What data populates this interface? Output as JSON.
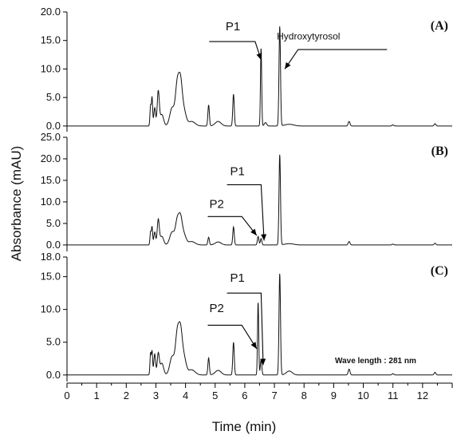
{
  "chart_data": {
    "type": "line",
    "xlabel": "Time (min)",
    "ylabel": "Absorbance (mAU)",
    "x_ticks": [
      "0",
      "1",
      "2",
      "3",
      "4",
      "5",
      "6",
      "7",
      "8",
      "9",
      "10",
      "11",
      "12"
    ],
    "xlim": [
      0,
      13
    ],
    "grid": false,
    "note": "Wave length : 281 nm",
    "panels": [
      {
        "label": "(A)",
        "ylim": [
          -1,
          20
        ],
        "y_ticks": [
          "0.0",
          "5.0",
          "10.0",
          "15.0",
          "20.0"
        ],
        "y_tick_values": [
          0,
          5,
          10,
          15,
          20
        ],
        "peaks": [
          {
            "x": 2.82,
            "y": 3.5,
            "w": 0.02
          },
          {
            "x": 2.87,
            "y": 5.0,
            "w": 0.02
          },
          {
            "x": 2.96,
            "y": 3.2,
            "w": 0.03
          },
          {
            "x": 3.08,
            "y": 6.0,
            "w": 0.035
          },
          {
            "x": 3.2,
            "y": 2.0,
            "w": 0.06
          },
          {
            "x": 3.55,
            "y": 3.2,
            "w": 0.08
          },
          {
            "x": 3.72,
            "y": 6.8,
            "w": 0.06
          },
          {
            "x": 3.83,
            "y": 7.2,
            "w": 0.06
          },
          {
            "x": 3.95,
            "y": 2.5,
            "w": 0.07
          },
          {
            "x": 4.2,
            "y": 0.8,
            "w": 0.12
          },
          {
            "x": 4.78,
            "y": 3.7,
            "w": 0.025
          },
          {
            "x": 5.1,
            "y": 0.8,
            "w": 0.1
          },
          {
            "x": 5.62,
            "y": 5.6,
            "w": 0.025
          },
          {
            "x": 6.55,
            "y": 13.8,
            "w": 0.02
          },
          {
            "x": 6.7,
            "y": 0.6,
            "w": 0.04
          },
          {
            "x": 7.18,
            "y": 17.5,
            "w": 0.025
          },
          {
            "x": 7.5,
            "y": 0.3,
            "w": 0.15
          },
          {
            "x": 9.52,
            "y": 0.8,
            "w": 0.03
          },
          {
            "x": 11.0,
            "y": 0.2,
            "w": 0.03
          },
          {
            "x": 12.42,
            "y": 0.4,
            "w": 0.03
          }
        ],
        "annotations": [
          {
            "text": "P1",
            "x": 5.6,
            "y": 16.8
          },
          {
            "text": "Hydroxytyrosol",
            "x": 8.15,
            "y": 15.2
          }
        ]
      },
      {
        "label": "(B)",
        "ylim": [
          -1.5,
          25
        ],
        "y_ticks": [
          "0.0",
          "5.0",
          "10.0",
          "15.0",
          "20.0",
          "25.0"
        ],
        "y_tick_values": [
          0,
          5,
          10,
          15,
          20,
          25
        ],
        "peaks": [
          {
            "x": 2.82,
            "y": 3.0,
            "w": 0.02
          },
          {
            "x": 2.87,
            "y": 4.2,
            "w": 0.02
          },
          {
            "x": 2.96,
            "y": 3.0,
            "w": 0.03
          },
          {
            "x": 3.08,
            "y": 5.8,
            "w": 0.035
          },
          {
            "x": 3.2,
            "y": 2.0,
            "w": 0.06
          },
          {
            "x": 3.55,
            "y": 3.0,
            "w": 0.08
          },
          {
            "x": 3.72,
            "y": 5.2,
            "w": 0.06
          },
          {
            "x": 3.83,
            "y": 5.8,
            "w": 0.06
          },
          {
            "x": 3.95,
            "y": 2.2,
            "w": 0.07
          },
          {
            "x": 4.2,
            "y": 0.8,
            "w": 0.12
          },
          {
            "x": 4.78,
            "y": 1.8,
            "w": 0.025
          },
          {
            "x": 5.1,
            "y": 0.7,
            "w": 0.1
          },
          {
            "x": 5.62,
            "y": 4.2,
            "w": 0.025
          },
          {
            "x": 6.45,
            "y": 2.0,
            "w": 0.025
          },
          {
            "x": 6.55,
            "y": 1.5,
            "w": 0.025
          },
          {
            "x": 7.18,
            "y": 21.0,
            "w": 0.025
          },
          {
            "x": 7.5,
            "y": 0.3,
            "w": 0.15
          },
          {
            "x": 9.52,
            "y": 0.8,
            "w": 0.03
          },
          {
            "x": 11.0,
            "y": 0.2,
            "w": 0.03
          },
          {
            "x": 12.42,
            "y": 0.4,
            "w": 0.03
          }
        ],
        "annotations": [
          {
            "text": "P1",
            "x": 5.75,
            "y": 16.2
          },
          {
            "text": "P2",
            "x": 5.05,
            "y": 8.6
          }
        ]
      },
      {
        "label": "(C)",
        "ylim": [
          -1,
          18
        ],
        "y_ticks": [
          "0.0",
          "5.0",
          "10.0",
          "15.0",
          "18.0"
        ],
        "y_tick_values": [
          0,
          5,
          10,
          15,
          18
        ],
        "peaks": [
          {
            "x": 2.82,
            "y": 3.3,
            "w": 0.02
          },
          {
            "x": 2.87,
            "y": 3.6,
            "w": 0.02
          },
          {
            "x": 2.96,
            "y": 3.2,
            "w": 0.03
          },
          {
            "x": 3.08,
            "y": 3.2,
            "w": 0.035
          },
          {
            "x": 3.2,
            "y": 1.8,
            "w": 0.06
          },
          {
            "x": 3.55,
            "y": 2.8,
            "w": 0.08
          },
          {
            "x": 3.72,
            "y": 5.8,
            "w": 0.06
          },
          {
            "x": 3.83,
            "y": 6.2,
            "w": 0.06
          },
          {
            "x": 3.95,
            "y": 2.5,
            "w": 0.07
          },
          {
            "x": 4.2,
            "y": 0.8,
            "w": 0.12
          },
          {
            "x": 4.78,
            "y": 2.6,
            "w": 0.025
          },
          {
            "x": 5.1,
            "y": 0.7,
            "w": 0.1
          },
          {
            "x": 5.62,
            "y": 5.0,
            "w": 0.025
          },
          {
            "x": 6.45,
            "y": 11.2,
            "w": 0.02
          },
          {
            "x": 6.55,
            "y": 2.3,
            "w": 0.025
          },
          {
            "x": 7.18,
            "y": 15.5,
            "w": 0.025
          },
          {
            "x": 7.5,
            "y": 0.6,
            "w": 0.1
          },
          {
            "x": 9.52,
            "y": 0.9,
            "w": 0.03
          },
          {
            "x": 11.0,
            "y": 0.2,
            "w": 0.03
          },
          {
            "x": 12.42,
            "y": 0.4,
            "w": 0.03
          }
        ],
        "annotations": [
          {
            "text": "P1",
            "x": 5.75,
            "y": 14.2
          },
          {
            "text": "P2",
            "x": 5.05,
            "y": 9.6
          }
        ]
      }
    ]
  }
}
